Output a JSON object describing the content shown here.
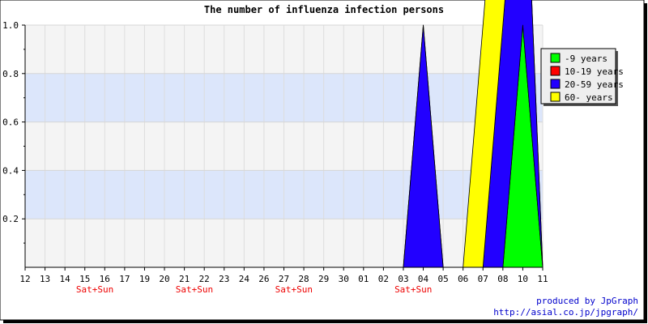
{
  "chart_data": {
    "type": "area",
    "title": "The number of influenza infection persons",
    "xlabel": "",
    "ylabel": "",
    "ylim": [
      0,
      1.0
    ],
    "y_ticks": [
      "0.2",
      "0.4",
      "0.6",
      "0.8",
      "1.0"
    ],
    "categories": [
      "12",
      "13",
      "14",
      "15",
      "16",
      "17",
      "19",
      "20",
      "21",
      "22",
      "23",
      "24",
      "26",
      "27",
      "28",
      "29",
      "30",
      "01",
      "02",
      "03",
      "04",
      "05",
      "06",
      "07",
      "08",
      "10",
      "11"
    ],
    "weekend_label": "Sat+Sun",
    "weekend_after_indices": [
      3,
      8,
      13,
      19
    ],
    "grid": true,
    "legend_position": "top-right",
    "series": [
      {
        "name": "-9 years",
        "color": "#00ff00",
        "values": [
          0,
          0,
          0,
          0,
          0,
          0,
          0,
          0,
          0,
          0,
          0,
          0,
          0,
          0,
          0,
          0,
          0,
          0,
          0,
          0,
          0,
          0,
          0,
          0,
          0,
          1,
          0
        ]
      },
      {
        "name": "10-19 years",
        "color": "#ff0000",
        "values": [
          0,
          0,
          0,
          0,
          0,
          0,
          0,
          0,
          0,
          0,
          0,
          0,
          0,
          0,
          0,
          0,
          0,
          0,
          0,
          0,
          0,
          0,
          0,
          0,
          0,
          0,
          0
        ]
      },
      {
        "name": "20-59 years",
        "color": "#2200ff",
        "values": [
          0,
          0,
          0,
          0,
          0,
          0,
          0,
          0,
          0,
          0,
          0,
          0,
          0,
          0,
          0,
          0,
          0,
          0,
          0,
          0,
          1,
          0,
          0,
          0,
          1,
          1,
          0
        ]
      },
      {
        "name": "60- years",
        "color": "#ffff00",
        "values": [
          0,
          0,
          0,
          0,
          0,
          0,
          0,
          0,
          0,
          0,
          0,
          0,
          0,
          0,
          0,
          0,
          0,
          0,
          0,
          0,
          0,
          0,
          0,
          1,
          1,
          0,
          0
        ]
      }
    ]
  },
  "credits": {
    "line1": "produced by JpGraph",
    "line2": "http://asial.co.jp/jpgraph/"
  }
}
